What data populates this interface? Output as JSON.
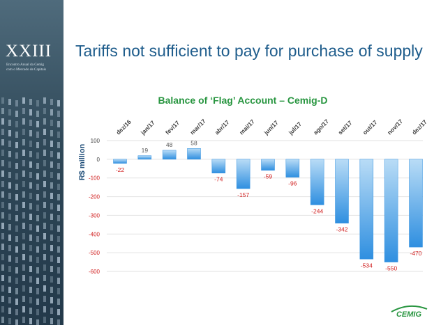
{
  "slide": {
    "brand_number": "XXIII",
    "brand_line1": "Encontro Anual da Cemig",
    "brand_line2": "com o Mercado de Capitais",
    "title": "Tariffs not sufficient to pay for purchase of supply",
    "logo_text": "CEMIG"
  },
  "colors": {
    "sidebar": "#2f4858",
    "title": "#1f5d8c",
    "chart_title": "#27953f",
    "bar_top": "#b9dcf6",
    "bar_bottom": "#2f8fe0",
    "negative_label": "#d01d1d",
    "positive_label": "#555555",
    "logo": "#27953f"
  },
  "chart_data": {
    "type": "bar",
    "title": "Balance of ‘Flag’ Account – Cemig-D",
    "ylabel": "R$ million",
    "xlabel": "",
    "categories": [
      "dez/16",
      "jan/17",
      "fev/17",
      "mar/17",
      "abr/17",
      "mai/17",
      "jun/17",
      "jul/17",
      "ago/17",
      "set/17",
      "out/17",
      "nov/17",
      "dez/17"
    ],
    "values": [
      -22,
      19,
      48,
      58,
      -74,
      -157,
      -59,
      -96,
      -244,
      -342,
      -534,
      -550,
      -470
    ],
    "ylim": [
      -600,
      100
    ],
    "yticks": [
      "100",
      "0",
      "-100",
      "-200",
      "-300",
      "-400",
      "-500",
      "-600"
    ],
    "ytick_values": [
      100,
      0,
      -100,
      -200,
      -300,
      -400,
      -500,
      -600
    ],
    "grid": true,
    "legend": "none"
  }
}
